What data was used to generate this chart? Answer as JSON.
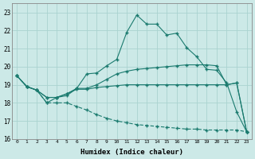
{
  "xlabel": "Humidex (Indice chaleur)",
  "bg_color": "#cce9e7",
  "grid_color": "#aad3d0",
  "line_color": "#1a7a6e",
  "xlim_min": -0.5,
  "xlim_max": 23.5,
  "ylim_min": 16,
  "ylim_max": 23.5,
  "xticks": [
    0,
    1,
    2,
    3,
    4,
    5,
    6,
    7,
    8,
    9,
    10,
    11,
    12,
    13,
    14,
    15,
    16,
    17,
    18,
    19,
    20,
    21,
    22,
    23
  ],
  "yticks": [
    16,
    17,
    18,
    19,
    20,
    21,
    22,
    23
  ],
  "line1_x": [
    0,
    1,
    2,
    3,
    4,
    5,
    6,
    7,
    8,
    9,
    10,
    11,
    12,
    13,
    14,
    15,
    16,
    17,
    18,
    19,
    20,
    21,
    22,
    23
  ],
  "line1_y": [
    19.5,
    18.9,
    18.7,
    18.0,
    18.3,
    18.4,
    18.8,
    19.6,
    19.65,
    20.05,
    20.4,
    21.9,
    22.85,
    22.35,
    22.35,
    21.75,
    21.85,
    21.05,
    20.55,
    19.85,
    19.8,
    19.1,
    17.5,
    16.4
  ],
  "line2_x": [
    0,
    1,
    2,
    3,
    4,
    5,
    6,
    7,
    8,
    9,
    10,
    11,
    12,
    13,
    14,
    15,
    16,
    17,
    18,
    19,
    20,
    21,
    22,
    23
  ],
  "line2_y": [
    19.5,
    18.9,
    18.7,
    18.3,
    18.3,
    18.5,
    18.8,
    18.8,
    19.0,
    19.3,
    19.6,
    19.75,
    19.85,
    19.9,
    19.95,
    20.0,
    20.05,
    20.1,
    20.1,
    20.1,
    20.05,
    19.0,
    19.1,
    16.4
  ],
  "line3_x": [
    0,
    1,
    2,
    3,
    4,
    5,
    6,
    7,
    8,
    9,
    10,
    11,
    12,
    13,
    14,
    15,
    16,
    17,
    18,
    19,
    20,
    21,
    22,
    23
  ],
  "line3_y": [
    19.5,
    18.9,
    18.7,
    18.3,
    18.3,
    18.5,
    18.75,
    18.75,
    18.85,
    18.9,
    18.95,
    19.0,
    19.0,
    19.0,
    19.0,
    19.0,
    19.0,
    19.0,
    19.0,
    19.0,
    19.0,
    19.0,
    19.1,
    16.4
  ],
  "line4_x": [
    0,
    1,
    2,
    3,
    4,
    5,
    6,
    7,
    8,
    9,
    10,
    11,
    12,
    13,
    14,
    15,
    16,
    17,
    18,
    19,
    20,
    21,
    22,
    23
  ],
  "line4_y": [
    19.5,
    18.9,
    18.7,
    18.0,
    18.0,
    18.0,
    17.8,
    17.6,
    17.35,
    17.15,
    17.0,
    16.9,
    16.8,
    16.75,
    16.7,
    16.65,
    16.6,
    16.55,
    16.55,
    16.5,
    16.5,
    16.5,
    16.5,
    16.4
  ]
}
